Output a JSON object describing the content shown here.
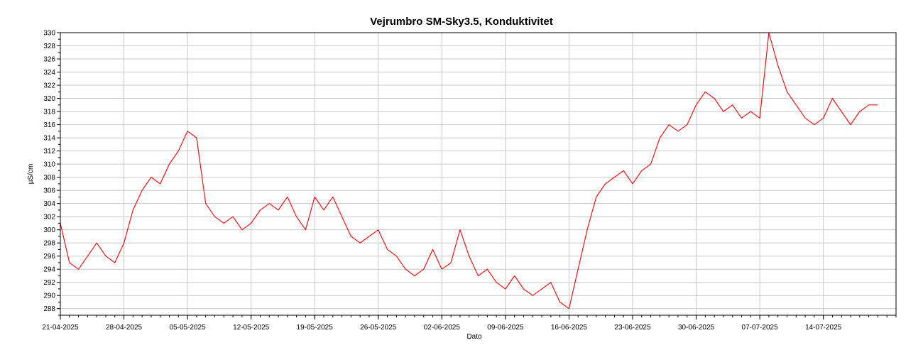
{
  "chart_data": {
    "type": "line",
    "title": "Vejrumbro SM-Sky3.5, Konduktivitet",
    "xlabel": "Dato",
    "ylabel": "µS/cm",
    "ylim": [
      287,
      330
    ],
    "yticks": [
      288,
      290,
      292,
      294,
      296,
      298,
      300,
      302,
      304,
      306,
      308,
      310,
      312,
      314,
      316,
      318,
      320,
      322,
      324,
      326,
      328,
      330
    ],
    "xlim": [
      "2025-04-21",
      "2025-07-22"
    ],
    "xticks": [
      "21-04-2025",
      "28-04-2025",
      "05-05-2025",
      "12-05-2025",
      "19-05-2025",
      "26-05-2025",
      "02-06-2025",
      "09-06-2025",
      "16-06-2025",
      "23-06-2025",
      "30-06-2025",
      "07-07-2025",
      "14-07-2025"
    ],
    "grid": true,
    "line_color": "#e8141a",
    "series": [
      {
        "x": [
          "2025-04-21",
          "2025-04-22",
          "2025-04-23",
          "2025-04-24",
          "2025-04-25",
          "2025-04-26",
          "2025-04-27",
          "2025-04-28",
          "2025-04-29",
          "2025-04-30",
          "2025-05-01",
          "2025-05-02",
          "2025-05-03",
          "2025-05-04",
          "2025-05-05",
          "2025-05-06",
          "2025-05-07",
          "2025-05-08",
          "2025-05-09",
          "2025-05-10",
          "2025-05-11",
          "2025-05-12",
          "2025-05-13",
          "2025-05-14",
          "2025-05-15",
          "2025-05-16",
          "2025-05-17",
          "2025-05-18",
          "2025-05-19",
          "2025-05-20",
          "2025-05-21",
          "2025-05-22",
          "2025-05-23",
          "2025-05-24",
          "2025-05-25",
          "2025-05-26",
          "2025-05-27",
          "2025-05-28",
          "2025-05-29",
          "2025-05-30",
          "2025-05-31",
          "2025-06-01",
          "2025-06-02",
          "2025-06-03",
          "2025-06-04",
          "2025-06-05",
          "2025-06-06",
          "2025-06-07",
          "2025-06-08",
          "2025-06-09",
          "2025-06-10",
          "2025-06-11",
          "2025-06-12",
          "2025-06-13",
          "2025-06-14",
          "2025-06-15",
          "2025-06-16",
          "2025-06-17",
          "2025-06-18",
          "2025-06-19",
          "2025-06-20",
          "2025-06-21",
          "2025-06-22",
          "2025-06-23",
          "2025-06-24",
          "2025-06-25",
          "2025-06-26",
          "2025-06-27",
          "2025-06-28",
          "2025-06-29",
          "2025-06-30",
          "2025-07-01",
          "2025-07-02",
          "2025-07-03",
          "2025-07-04",
          "2025-07-05",
          "2025-07-06",
          "2025-07-07",
          "2025-07-08",
          "2025-07-09",
          "2025-07-10",
          "2025-07-11",
          "2025-07-12",
          "2025-07-13",
          "2025-07-14",
          "2025-07-15",
          "2025-07-16",
          "2025-07-17",
          "2025-07-18",
          "2025-07-19",
          "2025-07-20"
        ],
        "values": [
          301,
          295,
          294,
          296,
          298,
          296,
          295,
          298,
          303,
          306,
          308,
          307,
          310,
          312,
          315,
          314,
          304,
          302,
          301,
          302,
          300,
          301,
          303,
          304,
          303,
          305,
          302,
          300,
          305,
          303,
          305,
          302,
          299,
          298,
          299,
          300,
          297,
          296,
          294,
          293,
          294,
          297,
          294,
          295,
          300,
          296,
          293,
          294,
          292,
          291,
          293,
          291,
          290,
          291,
          292,
          289,
          288,
          294,
          300,
          305,
          307,
          308,
          309,
          307,
          309,
          310,
          314,
          316,
          315,
          316,
          319,
          321,
          320,
          318,
          319,
          317,
          318,
          317,
          330,
          325,
          321,
          319,
          317,
          316,
          317,
          320,
          318,
          316,
          318,
          319,
          319
        ]
      }
    ]
  }
}
